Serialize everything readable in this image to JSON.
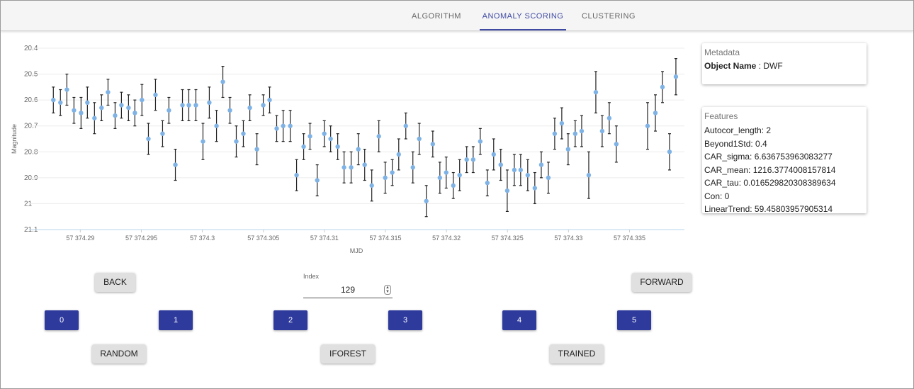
{
  "tabs": [
    "ALGORITHM",
    "ANOMALY SCORING",
    "CLUSTERING"
  ],
  "active_tab": 1,
  "chart_data": {
    "type": "scatter",
    "y_label": "Magnitude",
    "x_label": "MJD",
    "color": "#7fb2e5",
    "error_color": "#222222",
    "y_inverted": true,
    "grid": true,
    "xlim": [
      57374.2858,
      57374.3395
    ],
    "ylim": [
      20.4,
      21.1
    ],
    "xticks": [
      {
        "value": 57374.29,
        "label": "57 374.29"
      },
      {
        "value": 57374.295,
        "label": "57 374.295"
      },
      {
        "value": 57374.3,
        "label": "57 374.3"
      },
      {
        "value": 57374.305,
        "label": "57 374.305"
      },
      {
        "value": 57374.31,
        "label": "57 374.31"
      },
      {
        "value": 57374.315,
        "label": "57 374.315"
      },
      {
        "value": 57374.32,
        "label": "57 374.32"
      },
      {
        "value": 57374.325,
        "label": "57 374.325"
      },
      {
        "value": 57374.33,
        "label": "57 374.33"
      },
      {
        "value": 57374.335,
        "label": "57 374.335"
      }
    ],
    "yticks": [
      20.4,
      20.5,
      20.6,
      20.7,
      20.8,
      20.9,
      21,
      21.1
    ],
    "x": [
      57374.28779,
      57374.28837,
      57374.2889,
      57374.28948,
      57374.29006,
      57374.29058,
      57374.29116,
      57374.29174,
      57374.29227,
      57374.29285,
      57374.29337,
      57374.29395,
      57374.29447,
      57374.29505,
      57374.29558,
      57374.29616,
      57374.29674,
      57374.29726,
      57374.29779,
      57374.29837,
      57374.29889,
      57374.29947,
      57374.30005,
      57374.30057,
      57374.30116,
      57374.30168,
      57374.30226,
      57374.30278,
      57374.30336,
      57374.30389,
      57374.30447,
      57374.30499,
      57374.30551,
      57374.30609,
      57374.30662,
      57374.3072,
      57374.30772,
      57374.3083,
      57374.30882,
      57374.30941,
      57374.30999,
      57374.31051,
      57374.31109,
      57374.31161,
      57374.31219,
      57374.31278,
      57374.3133,
      57374.31388,
      57374.31446,
      57374.31498,
      57374.31556,
      57374.31609,
      57374.31667,
      57374.31725,
      57374.31777,
      57374.31835,
      57374.31888,
      57374.31946,
      57374.31998,
      57374.32056,
      57374.32108,
      57374.32166,
      57374.32219,
      57374.32277,
      57374.32335,
      57374.32387,
      57374.32445,
      57374.32498,
      57374.32556,
      57374.32608,
      57374.32666,
      57374.32724,
      57374.32777,
      57374.32835,
      57374.32887,
      57374.32945,
      57374.32997,
      57374.33055,
      57374.33108,
      57374.33166,
      57374.33224,
      57374.33276,
      57374.33334,
      57374.33392,
      57374.33648,
      57374.33712,
      57374.3377,
      57374.33828,
      57374.3388
    ],
    "values": [
      20.6,
      20.61,
      20.56,
      20.64,
      20.65,
      20.61,
      20.67,
      20.63,
      20.57,
      20.66,
      20.62,
      20.63,
      20.65,
      20.6,
      20.75,
      20.58,
      20.73,
      20.64,
      20.85,
      20.62,
      20.62,
      20.62,
      20.76,
      20.61,
      20.7,
      20.53,
      20.64,
      20.76,
      20.73,
      20.63,
      20.79,
      20.62,
      20.6,
      20.71,
      20.7,
      20.7,
      20.89,
      20.78,
      20.74,
      20.91,
      20.73,
      20.75,
      20.78,
      20.86,
      20.86,
      20.79,
      20.85,
      20.93,
      20.74,
      20.9,
      20.88,
      20.81,
      20.7,
      20.86,
      20.75,
      20.99,
      20.77,
      20.9,
      20.88,
      20.93,
      20.89,
      20.83,
      20.83,
      20.76,
      20.92,
      20.81,
      20.85,
      20.95,
      20.87,
      20.87,
      20.89,
      20.94,
      20.85,
      20.9,
      20.73,
      20.69,
      20.79,
      20.73,
      20.72,
      20.89,
      20.57,
      20.72,
      20.67,
      20.77,
      20.7,
      20.65,
      20.55,
      20.8,
      20.51
    ],
    "errors": [
      0.05,
      0.05,
      0.06,
      0.05,
      0.06,
      0.06,
      0.06,
      0.05,
      0.05,
      0.05,
      0.05,
      0.05,
      0.05,
      0.06,
      0.06,
      0.06,
      0.05,
      0.05,
      0.06,
      0.06,
      0.06,
      0.06,
      0.07,
      0.06,
      0.06,
      0.06,
      0.05,
      0.06,
      0.05,
      0.05,
      0.06,
      0.04,
      0.05,
      0.05,
      0.06,
      0.06,
      0.06,
      0.05,
      0.05,
      0.06,
      0.05,
      0.05,
      0.05,
      0.06,
      0.06,
      0.06,
      0.06,
      0.06,
      0.06,
      0.06,
      0.05,
      0.06,
      0.05,
      0.06,
      0.06,
      0.06,
      0.05,
      0.06,
      0.06,
      0.05,
      0.06,
      0.05,
      0.05,
      0.05,
      0.05,
      0.06,
      0.06,
      0.08,
      0.06,
      0.06,
      0.06,
      0.06,
      0.05,
      0.06,
      0.06,
      0.06,
      0.06,
      0.05,
      0.06,
      0.09,
      0.08,
      0.06,
      0.06,
      0.07,
      0.09,
      0.07,
      0.06,
      0.07,
      0.07
    ]
  },
  "metadata": {
    "title": "Metadata",
    "label": "Object Name",
    "value": " : DWF"
  },
  "features": {
    "title": "Features",
    "lines": [
      "Autocor_length: 2",
      "Beyond1Std: 0.4",
      "CAR_sigma: 6.636753963083277",
      "CAR_mean: 1216.3774008157814",
      "CAR_tau: 0.016529820308389634",
      "Con: 0",
      "LinearTrend: 59.45803957905314"
    ]
  },
  "controls": {
    "back": "BACK",
    "forward": "FORWARD",
    "index_label": "Index",
    "index_value": 129,
    "numbers": [
      "0",
      "1",
      "2",
      "3",
      "4",
      "5"
    ],
    "random": "RANDOM",
    "iforest": "IFOREST",
    "trained": "TRAINED"
  }
}
